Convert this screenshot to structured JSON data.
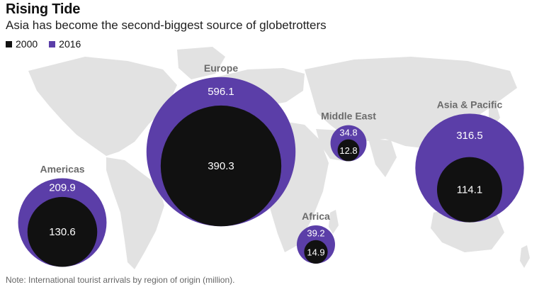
{
  "title": "Rising Tide",
  "subtitle": "Asia has become the second-biggest source of globetrotters",
  "note": "Note: International tourist arrivals by region of origin (million).",
  "colors": {
    "series_2000": "#111111",
    "series_2016": "#5b3ea8",
    "land": "#e2e2e2",
    "region_label": "#6b6b6b"
  },
  "legend": [
    {
      "label": "2000",
      "color": "#111111"
    },
    {
      "label": "2016",
      "color": "#5b3ea8"
    }
  ],
  "chart_data": {
    "type": "bubble-map",
    "series": [
      {
        "name": "2000",
        "values": [
          130.6,
          390.3,
          12.8,
          14.9,
          114.1
        ]
      },
      {
        "name": "2016",
        "values": [
          209.9,
          596.1,
          34.8,
          39.2,
          316.5
        ]
      }
    ],
    "regions": [
      {
        "name": "Americas",
        "v2000": 130.6,
        "v2016": 209.9
      },
      {
        "name": "Europe",
        "v2000": 390.3,
        "v2016": 596.1
      },
      {
        "name": "Middle East",
        "v2000": 12.8,
        "v2016": 34.8
      },
      {
        "name": "Africa",
        "v2000": 14.9,
        "v2016": 39.2
      },
      {
        "name": "Asia & Pacific",
        "v2000": 114.1,
        "v2016": 316.5
      }
    ]
  }
}
